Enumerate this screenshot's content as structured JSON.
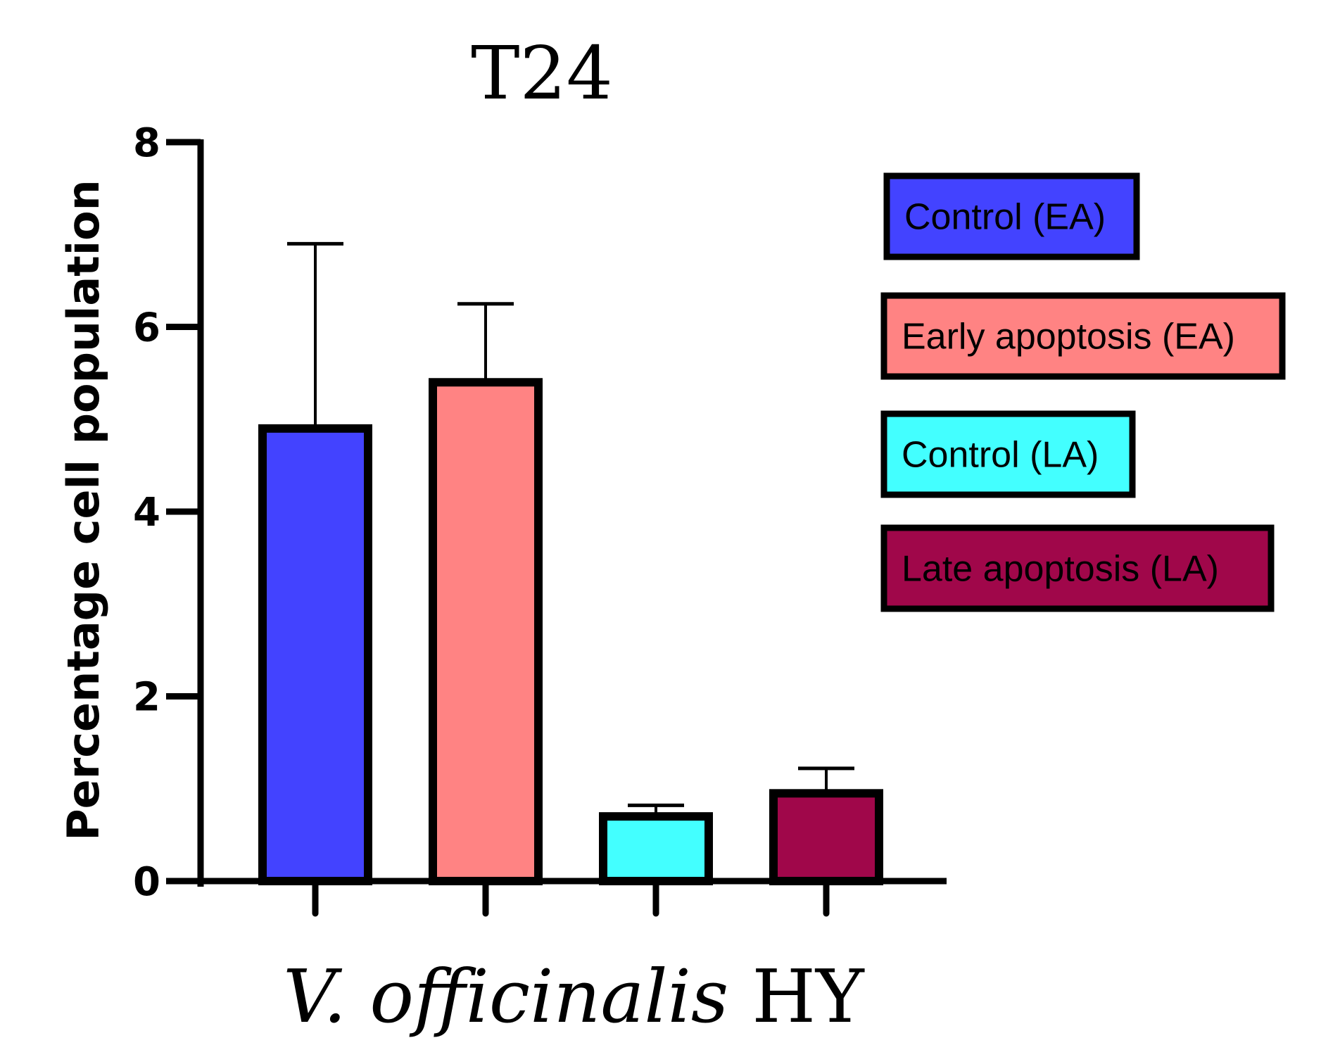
{
  "chart_data": {
    "type": "bar",
    "title": "T24",
    "ylabel": "Percentage cell population",
    "xlabel_italic": "V. officinalis",
    "xlabel_rest": "HY",
    "ylim": [
      0,
      8
    ],
    "yticks": [
      "0",
      "2",
      "4",
      "6",
      "8"
    ],
    "categories": [
      "Control (EA)",
      "Early apoptosis (EA)",
      "Control (LA)",
      "Late apoptosis (LA)"
    ],
    "values": [
      4.9,
      5.4,
      0.7,
      0.95
    ],
    "errors": [
      2.0,
      0.85,
      0.12,
      0.27
    ],
    "colors": [
      "#4343FF",
      "#FF8383",
      "#43FFFF",
      "#A0074A"
    ],
    "legend": [
      {
        "label": "Control (EA)",
        "color": "#4343FF"
      },
      {
        "label": "Early apoptosis (EA)",
        "color": "#FF8383"
      },
      {
        "label": "Control (LA)",
        "color": "#43FFFF"
      },
      {
        "label": "Late apoptosis (LA)",
        "color": "#A0074A"
      }
    ],
    "legend_position": "right"
  }
}
